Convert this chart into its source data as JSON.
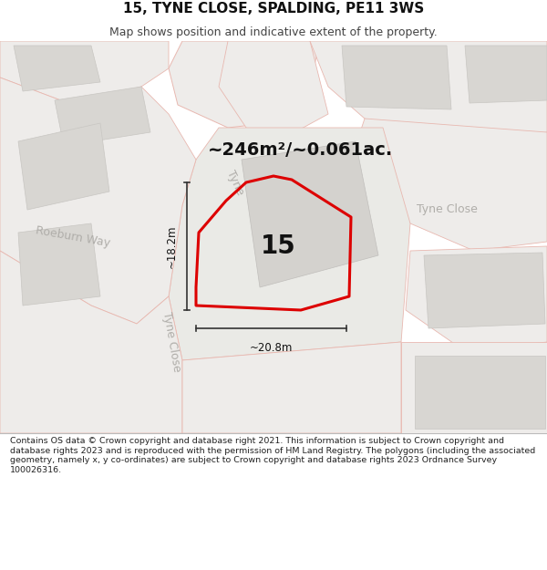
{
  "title": "15, TYNE CLOSE, SPALDING, PE11 3WS",
  "subtitle": "Map shows position and indicative extent of the property.",
  "area_text": "~246m²/~0.061ac.",
  "label_15": "15",
  "dim_width": "~20.8m",
  "dim_height": "~18.2m",
  "footer": "Contains OS data © Crown copyright and database right 2021. This information is subject to Crown copyright and database rights 2023 and is reproduced with the permission of HM Land Registry. The polygons (including the associated geometry, namely x, y co-ordinates) are subject to Crown copyright and database rights 2023 Ordnance Survey 100026316.",
  "bg_color": "#f2f0ee",
  "header_bg": "#ffffff",
  "footer_bg": "#ffffff",
  "road_stroke": "#e8b8b0",
  "building_fill": "#d8d6d2",
  "building_edge": "#c8c6c2",
  "plot_fill": "#e8e6e2",
  "property_stroke": "#dd0000",
  "dim_color": "#333333",
  "street_label_color": "#b0aeaa",
  "text_color": "#111111",
  "title_fontsize": 11,
  "subtitle_fontsize": 9,
  "area_fontsize": 14,
  "label_fontsize": 20,
  "street_fontsize": 9,
  "dim_fontsize": 8.5,
  "footer_fontsize": 6.8
}
